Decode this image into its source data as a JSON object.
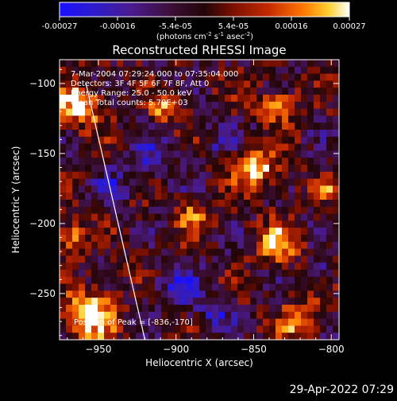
{
  "colorbar": {
    "ticks": [
      "-0.00027",
      "-0.00016",
      "-5.4e-05",
      "5.4e-05",
      "0.00016",
      "0.00027"
    ],
    "unit_label_prefix": "(photons cm",
    "unit_label_exp1": "-2",
    "unit_label_mid": " s",
    "unit_label_exp2": "-1",
    "unit_label_mid2": " asec",
    "unit_label_exp3": "-2",
    "unit_label_suffix": ")",
    "range": [
      -0.00027,
      0.00027
    ],
    "colors": [
      "#1a10ff",
      "#3a1b9e",
      "#4a1b8c",
      "#2c0a18",
      "#7a1000",
      "#c22a00",
      "#ff7a00",
      "#ffd23a",
      "#ffffff"
    ]
  },
  "image": {
    "title": "Reconstructed RHESSI Image",
    "annotations": {
      "time": "7-Mar-2004 07:29:24.000 to 07:35:04.000",
      "detectors": "Detectors: 3F 4F 5F 6F 7F 8F, Att 0",
      "energy": "Energy Range: 25.0 - 50.0 keV",
      "clean": "Clean   Total counts: 5.70E+03",
      "peak": "Position of Peak = [-836,-170]"
    },
    "footer_timestamp": "29-Apr-2022 07:29"
  },
  "chart_data": {
    "type": "heatmap",
    "title": "Reconstructed RHESSI Image",
    "xlabel": "Heliocentric X (arcsec)",
    "ylabel": "Heliocentric Y (arcsec)",
    "xlim": [
      -975,
      -795
    ],
    "ylim": [
      -283,
      -83
    ],
    "xticks": [
      -950,
      -900,
      -850,
      -800
    ],
    "yticks": [
      -100,
      -150,
      -200,
      -250
    ],
    "xtick_labels": [
      "-950",
      "-900",
      "-850",
      "-800"
    ],
    "ytick_labels": [
      "-100",
      "-150",
      "-200",
      "-250"
    ],
    "value_range": [
      -0.00027,
      0.00027
    ],
    "limb_line": [
      [
        -958,
        -100
      ],
      [
        -920,
        -283
      ]
    ],
    "grid_rows": 40,
    "grid_cols": 44,
    "hot_spots": [
      {
        "x": -962,
        "y": -115,
        "amp": 1.0,
        "r": 14
      },
      {
        "x": -955,
        "y": -265,
        "amp": 1.0,
        "r": 16
      },
      {
        "x": -848,
        "y": -160,
        "amp": 0.95,
        "r": 14
      },
      {
        "x": -907,
        "y": -118,
        "amp": 0.7,
        "r": 10
      },
      {
        "x": -835,
        "y": -215,
        "amp": 0.75,
        "r": 14
      },
      {
        "x": -888,
        "y": -195,
        "amp": 0.7,
        "r": 10
      },
      {
        "x": -820,
        "y": -270,
        "amp": 0.7,
        "r": 14
      },
      {
        "x": -835,
        "y": -115,
        "amp": 0.6,
        "r": 12
      },
      {
        "x": -968,
        "y": -210,
        "amp": 0.7,
        "r": 10
      },
      {
        "x": -802,
        "y": -175,
        "amp": 0.55,
        "r": 8
      }
    ],
    "cold_spots": [
      {
        "x": -918,
        "y": -155,
        "amp": 0.75,
        "r": 14
      },
      {
        "x": -900,
        "y": -245,
        "amp": 0.8,
        "r": 14
      },
      {
        "x": -875,
        "y": -265,
        "amp": 0.7,
        "r": 12
      },
      {
        "x": -940,
        "y": -175,
        "amp": 0.65,
        "r": 10
      },
      {
        "x": -870,
        "y": -140,
        "amp": 0.55,
        "r": 10
      },
      {
        "x": -808,
        "y": -232,
        "amp": 0.55,
        "r": 10
      }
    ]
  }
}
